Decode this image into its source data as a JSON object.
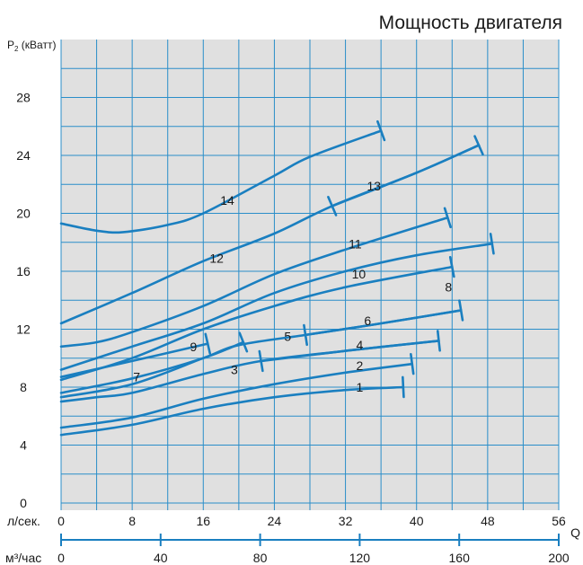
{
  "chart_data": {
    "type": "line",
    "title": "Мощность двигателя",
    "ylabel": {
      "main": "P",
      "sub": "2",
      "rest": " (кВатт)"
    },
    "yticks": [
      0,
      4,
      8,
      12,
      16,
      20,
      24,
      28
    ],
    "ylim": [
      -0.5,
      32
    ],
    "xlim_ls": [
      0,
      56
    ],
    "x_ls_label": "л/сек.",
    "x_ls_ticks": [
      0,
      8,
      16,
      24,
      32,
      40,
      48,
      56
    ],
    "x_m3_label": "м³/час",
    "x_m3_ticks": [
      0,
      40,
      80,
      120,
      160,
      200
    ],
    "x_m3_max": 200,
    "q_label": "Q",
    "grid": true,
    "colors": {
      "line": "#1a7fc0",
      "grid": "#2a8ec9",
      "background": "#e0e0e0"
    },
    "series": [
      {
        "label": "1",
        "label_at": [
          33.6,
          8.0
        ],
        "points": [
          [
            0,
            4.7
          ],
          [
            8,
            5.4
          ],
          [
            16,
            6.5
          ],
          [
            24,
            7.3
          ],
          [
            32,
            7.8
          ],
          [
            38.5,
            8.0
          ]
        ],
        "tick": [
          38.5,
          8.0
        ]
      },
      {
        "label": "2",
        "label_at": [
          33.6,
          9.5
        ],
        "points": [
          [
            0,
            5.2
          ],
          [
            8,
            5.9
          ],
          [
            16,
            7.2
          ],
          [
            24,
            8.2
          ],
          [
            32,
            9.0
          ],
          [
            39.5,
            9.6
          ]
        ],
        "tick": [
          39.5,
          9.6
        ]
      },
      {
        "label": "3",
        "label_at": [
          19.5,
          9.2
        ],
        "points": [
          [
            0,
            7.0
          ],
          [
            4,
            7.3
          ],
          [
            8,
            7.6
          ],
          [
            16,
            8.9
          ],
          [
            22.5,
            9.8
          ],
          [
            32,
            10.5
          ],
          [
            42.5,
            11.2
          ]
        ],
        "tick": [
          22.5,
          9.8
        ]
      },
      {
        "label": "4",
        "label_at": [
          33.6,
          10.9
        ],
        "points": [
          [
            22.5,
            9.8
          ],
          [
            32,
            10.5
          ],
          [
            42.5,
            11.2
          ]
        ],
        "tick": [
          42.5,
          11.2
        ]
      },
      {
        "label": "5",
        "label_at": [
          25.5,
          11.5
        ],
        "points": [
          [
            0,
            7.3
          ],
          [
            8,
            8.2
          ],
          [
            16,
            10.0
          ],
          [
            20,
            10.9
          ],
          [
            27.5,
            11.6
          ],
          [
            35,
            12.3
          ],
          [
            45,
            13.3
          ]
        ],
        "tick": [
          27.5,
          11.6
        ]
      },
      {
        "label": "6",
        "label_at": [
          34.5,
          12.6
        ],
        "points": [
          [
            27.5,
            11.6
          ],
          [
            35,
            12.3
          ],
          [
            45,
            13.3
          ]
        ],
        "tick": [
          45,
          13.3
        ]
      },
      {
        "label": "7",
        "label_at": [
          8.5,
          8.7
        ],
        "points": [
          [
            0,
            7.6
          ],
          [
            8,
            8.6
          ],
          [
            16,
            10.0
          ],
          [
            20.5,
            11.1
          ]
        ],
        "tick": [
          20.5,
          11.1
        ]
      },
      {
        "label": "8",
        "label_at": [
          43.6,
          14.9
        ],
        "points": [
          [
            0,
            8.5
          ],
          [
            8,
            10.0
          ],
          [
            16,
            12.0
          ],
          [
            24,
            13.6
          ],
          [
            32,
            14.9
          ],
          [
            44,
            16.3
          ]
        ],
        "tick": [
          44,
          16.3
        ]
      },
      {
        "label": "9",
        "label_at": [
          14.9,
          10.8
        ],
        "points": [
          [
            0,
            8.7
          ],
          [
            8,
            9.8
          ],
          [
            16.5,
            11.0
          ]
        ],
        "tick": [
          16.5,
          11.0
        ]
      },
      {
        "label": "10",
        "label_at": [
          33.5,
          15.8
        ],
        "points": [
          [
            0,
            9.2
          ],
          [
            8,
            10.8
          ],
          [
            16,
            12.4
          ],
          [
            24,
            14.5
          ],
          [
            32,
            16.0
          ],
          [
            40,
            17.1
          ],
          [
            48.5,
            17.9
          ]
        ],
        "tick": [
          48.5,
          17.9
        ]
      },
      {
        "label": "11",
        "label_at": [
          33.1,
          17.9
        ],
        "points": [
          [
            0,
            10.8
          ],
          [
            4,
            11.1
          ],
          [
            8,
            11.8
          ],
          [
            16,
            13.6
          ],
          [
            24,
            15.8
          ],
          [
            32,
            17.5
          ],
          [
            43.5,
            19.7
          ]
        ],
        "tick": [
          43.5,
          19.7
        ]
      },
      {
        "label": "12",
        "label_at": [
          17.5,
          16.9
        ],
        "points": [
          [
            0,
            12.4
          ],
          [
            8,
            14.5
          ],
          [
            16,
            16.7
          ],
          [
            24,
            18.6
          ],
          [
            30.5,
            20.5
          ],
          [
            40,
            22.8
          ],
          [
            47,
            24.7
          ]
        ],
        "tick": [
          30.5,
          20.5
        ]
      },
      {
        "label": "13",
        "label_at": [
          35.2,
          21.9
        ],
        "points": [
          [
            30.5,
            20.5
          ],
          [
            40,
            22.8
          ],
          [
            47,
            24.7
          ]
        ],
        "tick": [
          47,
          24.7
        ]
      },
      {
        "label": "14",
        "label_at": [
          18.7,
          20.9
        ],
        "points": [
          [
            0,
            19.3
          ],
          [
            4,
            18.8
          ],
          [
            7,
            18.7
          ],
          [
            12,
            19.2
          ],
          [
            16,
            20.0
          ],
          [
            24,
            22.6
          ],
          [
            28,
            23.9
          ],
          [
            36,
            25.7
          ]
        ],
        "tick": [
          36,
          25.7
        ]
      }
    ]
  }
}
